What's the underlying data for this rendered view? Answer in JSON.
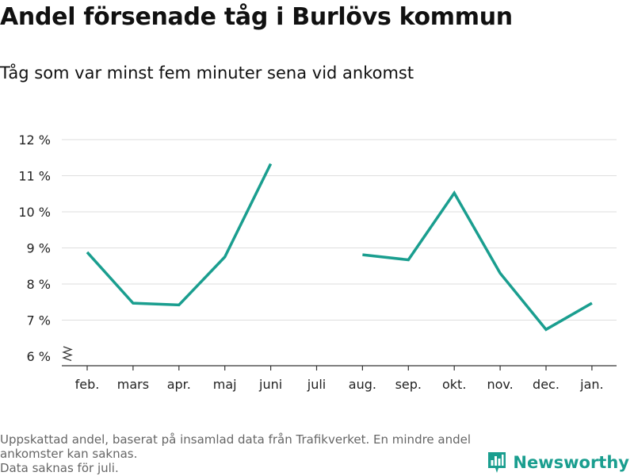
{
  "title": "Andel försenade tåg i Burlövs kommun",
  "subtitle": "Tåg som var minst fem minuter sena vid ankomst",
  "footnote": {
    "line1": "Uppskattad andel, baserat på insamlad data från Trafikverket. En mindre andel ankomster kan saknas.",
    "line2": "Data saknas för juli."
  },
  "brand": {
    "name": "Newsworthy",
    "color": "#1a9e8f",
    "icon": "bar-chart-icon"
  },
  "chart_data": {
    "type": "line",
    "categories": [
      "feb.",
      "mars",
      "apr.",
      "maj",
      "juni",
      "juli",
      "aug.",
      "sep.",
      "okt.",
      "nov.",
      "dec.",
      "jan."
    ],
    "series": [
      {
        "values": [
          8.88,
          7.47,
          7.42,
          8.75,
          11.33,
          null,
          8.81,
          8.67,
          10.52,
          8.3,
          6.74,
          7.47
        ]
      }
    ],
    "ylim": [
      6,
      12
    ],
    "yticks": [
      6,
      7,
      8,
      9,
      10,
      11,
      12
    ],
    "ytick_labels": [
      "6 %",
      "7 %",
      "8 %",
      "9 %",
      "10 %",
      "11 %",
      "12 %"
    ],
    "grid": true,
    "line_color": "#1a9e8f",
    "axis_break": true
  }
}
